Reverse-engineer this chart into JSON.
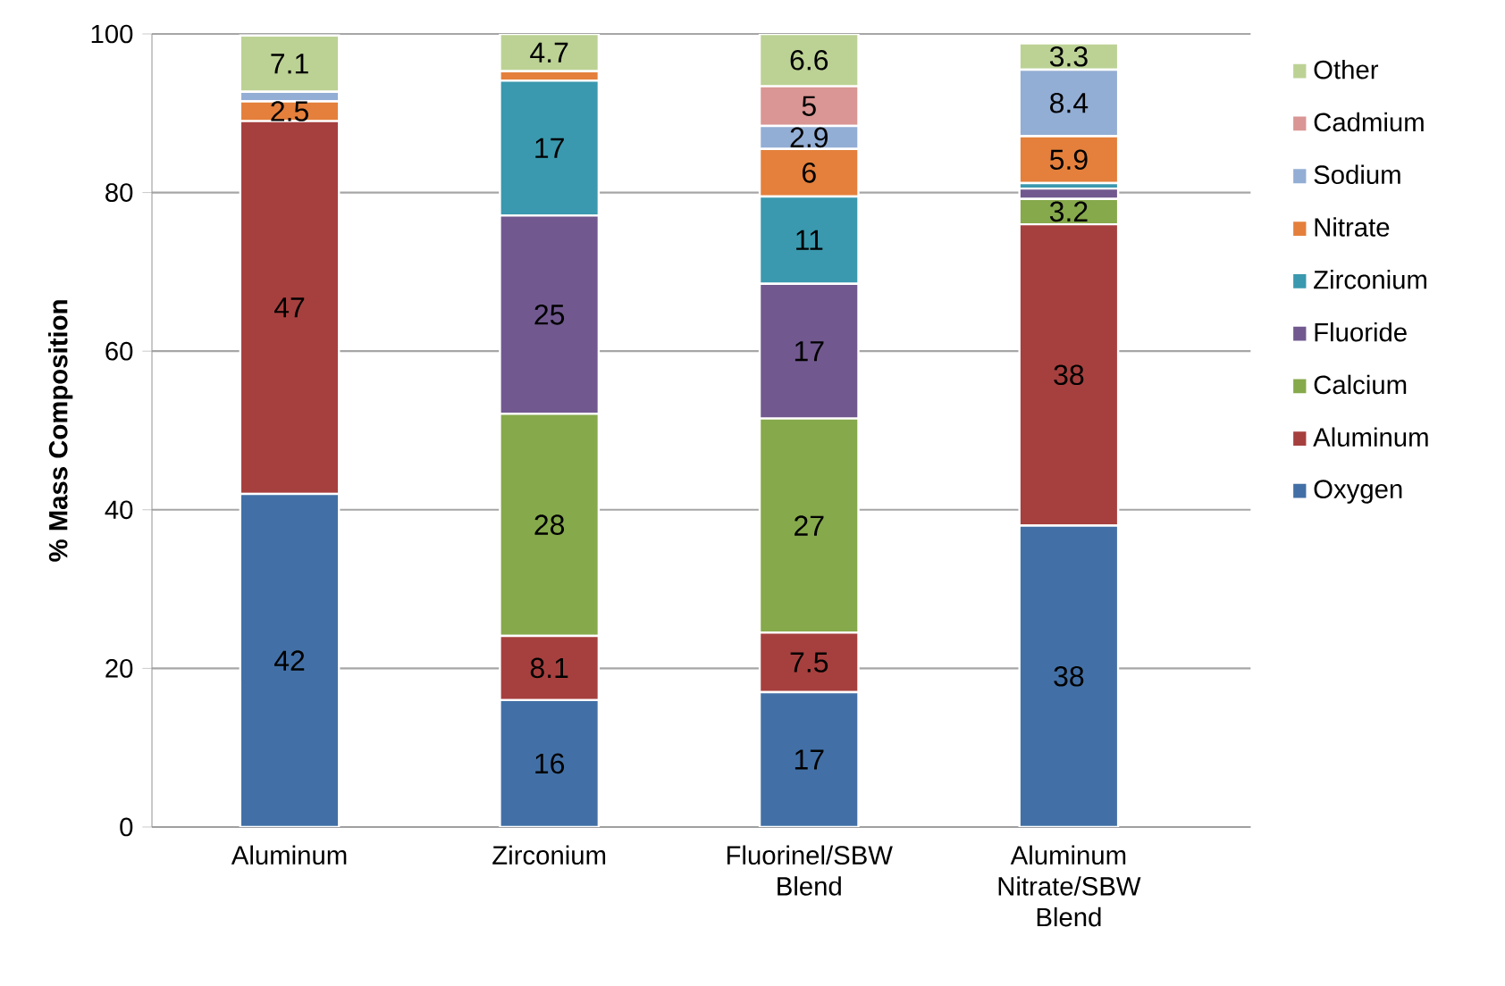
{
  "chart_data": {
    "type": "bar",
    "stacked": true,
    "ylabel": "% Mass Composition",
    "categories": [
      "Aluminum",
      "Zirconium",
      "Fluorinel/SBW Blend",
      "Aluminum Nitrate/SBW Blend"
    ],
    "ylim": [
      0,
      100
    ],
    "yticks": [
      0,
      20,
      40,
      60,
      80,
      100
    ],
    "grid": "y",
    "legend": "right",
    "series": [
      {
        "name": "Oxygen",
        "color": "#4270a6",
        "values": [
          42,
          16,
          17,
          38
        ],
        "value_labels": [
          "42",
          "16",
          "17",
          "38"
        ]
      },
      {
        "name": "Aluminum",
        "color": "#a6403e",
        "values": [
          47,
          8.1,
          7.5,
          38
        ],
        "value_labels": [
          "47",
          "8.1",
          "7.5",
          "38"
        ]
      },
      {
        "name": "Calcium",
        "color": "#86a94b",
        "values": [
          null,
          28,
          27,
          3.2
        ],
        "value_labels": [
          null,
          "28",
          "27",
          "3.2"
        ]
      },
      {
        "name": "Fluoride",
        "color": "#71598f",
        "values": [
          null,
          25,
          17,
          1.3
        ],
        "value_labels": [
          null,
          "25",
          "17",
          null
        ]
      },
      {
        "name": "Zirconium",
        "color": "#3a99ae",
        "values": [
          null,
          17,
          11,
          0.7
        ],
        "value_labels": [
          null,
          "17",
          "11",
          null
        ]
      },
      {
        "name": "Nitrate",
        "color": "#e4803c",
        "values": [
          2.5,
          1.2,
          6,
          5.9
        ],
        "value_labels": [
          "2.5",
          null,
          "6",
          "5.9"
        ]
      },
      {
        "name": "Sodium",
        "color": "#93aed5",
        "values": [
          1.2,
          null,
          2.9,
          8.4
        ],
        "value_labels": [
          null,
          null,
          "2.9",
          "8.4"
        ]
      },
      {
        "name": "Cadmium",
        "color": "#d99694",
        "values": [
          null,
          null,
          5,
          null
        ],
        "value_labels": [
          null,
          null,
          "5",
          null
        ]
      },
      {
        "name": "Other",
        "color": "#bcd295",
        "values": [
          7.1,
          4.7,
          6.6,
          3.3
        ],
        "value_labels": [
          "7.1",
          "4.7",
          "6.6",
          "3.3"
        ]
      }
    ]
  }
}
